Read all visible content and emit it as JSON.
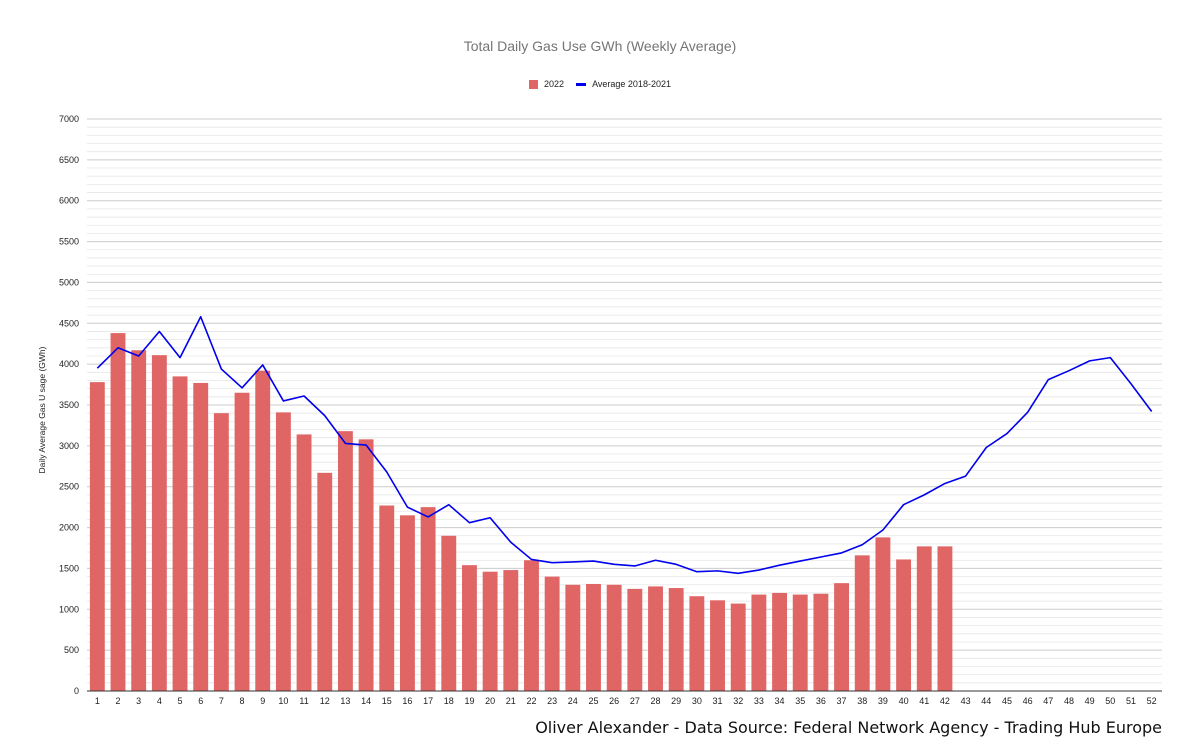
{
  "chart_data": {
    "type": "bar",
    "title": "Total Daily Gas Use GWh (Weekly Average)",
    "ylabel": "Daily Average Gas U sage (GWh)",
    "xlabel": "",
    "ylim": [
      0,
      7000
    ],
    "yticks": [
      0,
      500,
      1000,
      1500,
      2000,
      2500,
      3000,
      3500,
      4000,
      4500,
      5000,
      5500,
      6000,
      6500,
      7000
    ],
    "grid": true,
    "legend_position": "top-center",
    "categories": [
      "1",
      "2",
      "3",
      "4",
      "5",
      "6",
      "7",
      "8",
      "9",
      "10",
      "11",
      "12",
      "13",
      "14",
      "15",
      "16",
      "17",
      "18",
      "19",
      "20",
      "21",
      "22",
      "23",
      "24",
      "25",
      "26",
      "27",
      "28",
      "29",
      "30",
      "31",
      "32",
      "33",
      "34",
      "35",
      "36",
      "37",
      "38",
      "39",
      "40",
      "41",
      "42",
      "43",
      "44",
      "45",
      "46",
      "47",
      "48",
      "49",
      "50",
      "51",
      "52"
    ],
    "series": [
      {
        "name": "2022",
        "type": "bar",
        "color": "#e06666",
        "values": [
          3780,
          4380,
          4170,
          4110,
          3850,
          3770,
          3400,
          3650,
          3920,
          3410,
          3140,
          2670,
          3180,
          3080,
          2270,
          2150,
          2250,
          1900,
          1540,
          1460,
          1480,
          1600,
          1400,
          1300,
          1310,
          1300,
          1250,
          1280,
          1260,
          1160,
          1110,
          1070,
          1180,
          1200,
          1180,
          1190,
          1320,
          1660,
          1880,
          1610,
          1770,
          1770,
          null,
          null,
          null,
          null,
          null,
          null,
          null,
          null,
          null,
          null
        ]
      },
      {
        "name": "Average 2018-2021",
        "type": "line",
        "color": "#0000ee",
        "values": [
          3950,
          4200,
          4100,
          4400,
          4080,
          4580,
          3940,
          3710,
          3990,
          3550,
          3610,
          3370,
          3030,
          3010,
          2680,
          2250,
          2130,
          2280,
          2060,
          2120,
          1820,
          1610,
          1570,
          1580,
          1590,
          1550,
          1530,
          1600,
          1550,
          1460,
          1470,
          1440,
          1480,
          1540,
          1590,
          1640,
          1690,
          1790,
          1970,
          2280,
          2400,
          2540,
          2630,
          2980,
          3150,
          3410,
          3810,
          3920,
          4040,
          4080,
          3760,
          3420
        ]
      }
    ]
  },
  "credit": "Oliver Alexander - Data Source: Federal Network Agency - Trading Hub Europe"
}
